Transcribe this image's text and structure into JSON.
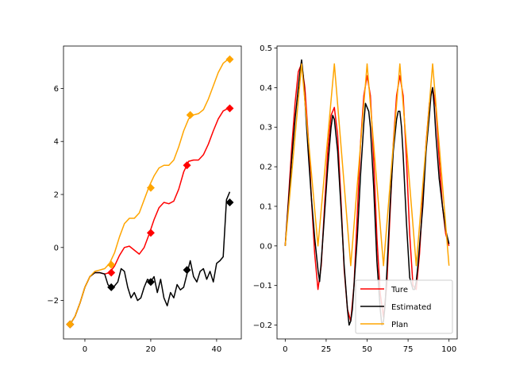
{
  "chart_data": [
    {
      "type": "line",
      "xlim": [
        -6.5,
        47.5
      ],
      "ylim": [
        -3.45,
        7.6
      ],
      "xticks": [
        0,
        20,
        40
      ],
      "xtick_labels": [
        "0",
        "20",
        "40"
      ],
      "yticks": [
        -2,
        0,
        2,
        4,
        6
      ],
      "ytick_labels": [
        "−2",
        "0",
        "2",
        "4",
        "6"
      ],
      "grid": false,
      "series": [
        {
          "color": "#ff0000",
          "x": [
            -4.5,
            -3,
            -1.5,
            0,
            1.5,
            3,
            4.5,
            6,
            7.5,
            9,
            10.5,
            12,
            13.5,
            15,
            16.5,
            18,
            19.5,
            21,
            22.5,
            24,
            25.5,
            27,
            28.5,
            30,
            31.5,
            33,
            34.5,
            36,
            37.5,
            39,
            40.5,
            42,
            43.5
          ],
          "y": [
            -2.9,
            -2.6,
            -2.1,
            -1.5,
            -1.1,
            -0.95,
            -0.95,
            -1.0,
            -0.95,
            -0.7,
            -0.3,
            0.0,
            0.05,
            -0.1,
            -0.25,
            0.0,
            0.5,
            1.05,
            1.5,
            1.7,
            1.65,
            1.75,
            2.2,
            2.85,
            3.25,
            3.3,
            3.3,
            3.5,
            3.9,
            4.4,
            4.85,
            5.15,
            5.25
          ],
          "markers": [
            [
              -4.5,
              -2.9
            ],
            [
              8,
              -0.95
            ],
            [
              20,
              0.55
            ],
            [
              31,
              3.1
            ],
            [
              44,
              5.25
            ]
          ]
        },
        {
          "color": "#000000",
          "x": [
            -4.5,
            -3,
            -1.5,
            0,
            1.5,
            3,
            4.5,
            6,
            7,
            8,
            9,
            10,
            11,
            12,
            13,
            14,
            15,
            16,
            17,
            18,
            19,
            20,
            21,
            22,
            23,
            24,
            25,
            26,
            27,
            28,
            29,
            30,
            31,
            32,
            33,
            34,
            35,
            36,
            37,
            38,
            39,
            40,
            41,
            42,
            43,
            44
          ],
          "y": [
            -2.9,
            -2.6,
            -2.1,
            -1.5,
            -1.1,
            -0.95,
            -0.95,
            -1.0,
            -1.4,
            -1.55,
            -1.45,
            -1.3,
            -0.8,
            -0.9,
            -1.5,
            -1.9,
            -1.7,
            -2.0,
            -1.9,
            -1.5,
            -1.2,
            -1.3,
            -1.1,
            -1.7,
            -1.2,
            -1.9,
            -2.2,
            -1.7,
            -1.9,
            -1.4,
            -1.6,
            -1.5,
            -1.0,
            -0.5,
            -1.1,
            -1.3,
            -0.9,
            -0.8,
            -1.2,
            -0.9,
            -1.3,
            -0.6,
            -0.5,
            -0.35,
            1.8,
            2.1
          ],
          "markers": [
            [
              -4.5,
              -2.9
            ],
            [
              8,
              -1.5
            ],
            [
              20,
              -1.3
            ],
            [
              31,
              -0.85
            ],
            [
              44,
              1.7
            ]
          ]
        },
        {
          "color": "#ffa500",
          "x": [
            -4.5,
            -3,
            -1.5,
            0,
            1.5,
            3,
            4.5,
            6,
            7.5,
            9,
            10.5,
            12,
            13.5,
            15,
            16.5,
            18,
            19.5,
            21,
            22.5,
            24,
            25.5,
            27,
            28.5,
            30,
            31.5,
            33,
            34.5,
            36,
            37.5,
            39,
            40.5,
            42,
            43.5
          ],
          "y": [
            -2.9,
            -2.6,
            -2.1,
            -1.5,
            -1.1,
            -0.9,
            -0.85,
            -0.8,
            -0.6,
            -0.2,
            0.4,
            0.9,
            1.1,
            1.1,
            1.3,
            1.8,
            2.3,
            2.7,
            3.0,
            3.1,
            3.1,
            3.3,
            3.8,
            4.4,
            4.85,
            5.0,
            5.05,
            5.2,
            5.6,
            6.1,
            6.6,
            6.95,
            7.1
          ],
          "markers": [
            [
              -4.5,
              -2.9
            ],
            [
              8,
              -0.65
            ],
            [
              20,
              2.25
            ],
            [
              32,
              5.0
            ],
            [
              44,
              7.1
            ]
          ]
        }
      ]
    },
    {
      "type": "line",
      "xlim": [
        -5,
        105
      ],
      "ylim": [
        -0.235,
        0.505
      ],
      "xticks": [
        0,
        25,
        50,
        75,
        100
      ],
      "xtick_labels": [
        "0",
        "25",
        "50",
        "75",
        "100"
      ],
      "yticks": [
        -0.2,
        -0.1,
        0.0,
        0.1,
        0.2,
        0.3,
        0.4,
        0.5
      ],
      "ytick_labels": [
        "−0.2",
        "−0.1",
        "0.0",
        "0.1",
        "0.2",
        "0.3",
        "0.4",
        "0.5"
      ],
      "grid": false,
      "legend_position": "lower-right",
      "series": [
        {
          "name": "Ture",
          "color": "#ff0000",
          "x": [
            0,
            2,
            4,
            6,
            8,
            10,
            12,
            14,
            16,
            18,
            20,
            22,
            24,
            26,
            28,
            30,
            32,
            34,
            36,
            38,
            40,
            42,
            44,
            46,
            48,
            50,
            52,
            54,
            56,
            58,
            60,
            62,
            64,
            66,
            68,
            70,
            72,
            74,
            76,
            78,
            80,
            82,
            84,
            86,
            88,
            90,
            92,
            94,
            96,
            98,
            100
          ],
          "y": [
            0.0,
            0.12,
            0.25,
            0.36,
            0.44,
            0.46,
            0.4,
            0.28,
            0.12,
            -0.02,
            -0.11,
            -0.05,
            0.1,
            0.24,
            0.33,
            0.35,
            0.28,
            0.12,
            -0.06,
            -0.16,
            -0.19,
            -0.1,
            0.08,
            0.26,
            0.38,
            0.43,
            0.38,
            0.22,
            0.02,
            -0.12,
            -0.18,
            -0.1,
            0.08,
            0.26,
            0.38,
            0.43,
            0.38,
            0.22,
            0.03,
            -0.1,
            -0.11,
            -0.02,
            0.12,
            0.26,
            0.36,
            0.4,
            0.35,
            0.22,
            0.1,
            0.03,
            0.0
          ]
        },
        {
          "name": "Estimated",
          "color": "#000000",
          "x": [
            0,
            2,
            4,
            6,
            8,
            9,
            10,
            11,
            12,
            14,
            16,
            18,
            20,
            21,
            22,
            24,
            26,
            28,
            29,
            30,
            31,
            32,
            34,
            36,
            38,
            39,
            40,
            41,
            42,
            44,
            46,
            48,
            49,
            50,
            51,
            52,
            54,
            56,
            58,
            59,
            60,
            61,
            62,
            64,
            66,
            68,
            69,
            70,
            71,
            72,
            74,
            76,
            78,
            79,
            80,
            81,
            82,
            84,
            86,
            88,
            89,
            90,
            91,
            92,
            94,
            96,
            98,
            100
          ],
          "y": [
            0.0,
            0.11,
            0.22,
            0.32,
            0.4,
            0.44,
            0.47,
            0.43,
            0.37,
            0.24,
            0.12,
            0.02,
            -0.06,
            -0.09,
            -0.04,
            0.08,
            0.2,
            0.3,
            0.33,
            0.32,
            0.28,
            0.24,
            0.1,
            -0.05,
            -0.16,
            -0.2,
            -0.19,
            -0.16,
            -0.1,
            0.02,
            0.18,
            0.31,
            0.36,
            0.35,
            0.34,
            0.3,
            0.15,
            -0.04,
            -0.16,
            -0.2,
            -0.19,
            -0.15,
            -0.07,
            0.1,
            0.24,
            0.32,
            0.34,
            0.34,
            0.3,
            0.23,
            0.06,
            -0.08,
            -0.11,
            -0.11,
            -0.09,
            -0.05,
            0.0,
            0.1,
            0.24,
            0.33,
            0.38,
            0.4,
            0.35,
            0.28,
            0.17,
            0.1,
            0.04,
            0.005
          ]
        },
        {
          "name": "Plan",
          "color": "#ffa500",
          "x": [
            0,
            10,
            20,
            30,
            40,
            50,
            60,
            70,
            80,
            90,
            100
          ],
          "y": [
            0.0,
            0.46,
            0.0,
            0.46,
            -0.05,
            0.46,
            -0.05,
            0.46,
            -0.05,
            0.46,
            -0.05
          ]
        }
      ]
    }
  ]
}
